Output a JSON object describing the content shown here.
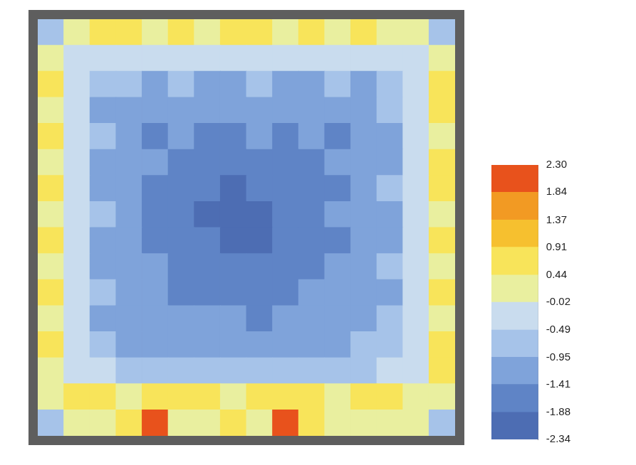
{
  "chart_data": {
    "type": "heatmap",
    "tick_labels": false,
    "cells": [
      [
        -0.5,
        0.3,
        0.5,
        0.6,
        0.4,
        0.5,
        0.3,
        0.5,
        0.6,
        0.4,
        0.5,
        0.3,
        0.6,
        0.4,
        0.2,
        -0.5
      ],
      [
        0.3,
        -0.1,
        -0.3,
        -0.2,
        -0.4,
        -0.3,
        -0.2,
        -0.4,
        -0.3,
        -0.2,
        -0.4,
        -0.3,
        -0.2,
        -0.3,
        -0.1,
        0.4
      ],
      [
        0.5,
        -0.3,
        -0.8,
        -0.9,
        -1.0,
        -0.9,
        -1.1,
        -1.0,
        -0.9,
        -1.0,
        -1.1,
        -0.9,
        -1.0,
        -0.8,
        -0.4,
        0.5
      ],
      [
        0.4,
        -0.4,
        -1.0,
        -1.2,
        -1.3,
        -1.2,
        -1.4,
        -1.3,
        -1.2,
        -1.4,
        -1.3,
        -1.2,
        -1.1,
        -0.9,
        -0.3,
        0.6
      ],
      [
        0.6,
        -0.3,
        -0.9,
        -1.3,
        -1.5,
        -1.4,
        -1.5,
        -1.6,
        -1.4,
        -1.5,
        -1.4,
        -1.5,
        -1.3,
        -1.0,
        -0.4,
        0.4
      ],
      [
        0.4,
        -0.2,
        -1.1,
        -1.2,
        -1.4,
        -1.6,
        -1.7,
        -1.6,
        -1.7,
        -1.6,
        -1.5,
        -1.4,
        -1.2,
        -1.1,
        -0.3,
        0.5
      ],
      [
        0.5,
        -0.4,
        -1.0,
        -1.4,
        -1.5,
        -1.7,
        -1.8,
        -1.9,
        -1.8,
        -1.7,
        -1.6,
        -1.5,
        -1.3,
        -0.9,
        -0.2,
        0.6
      ],
      [
        0.3,
        -0.3,
        -0.9,
        -1.3,
        -1.6,
        -1.7,
        -1.9,
        -2.0,
        -1.9,
        -1.8,
        -1.7,
        -1.4,
        -1.2,
        -1.0,
        -0.4,
        0.4
      ],
      [
        0.6,
        -0.2,
        -1.1,
        -1.2,
        -1.5,
        -1.6,
        -1.8,
        -1.9,
        -2.0,
        -1.8,
        -1.6,
        -1.5,
        -1.3,
        -1.1,
        -0.3,
        0.5
      ],
      [
        0.4,
        -0.4,
        -1.0,
        -1.3,
        -1.4,
        -1.6,
        -1.7,
        -1.8,
        -1.7,
        -1.7,
        -1.5,
        -1.4,
        -1.2,
        -0.9,
        -0.2,
        0.3
      ],
      [
        0.5,
        -0.3,
        -0.9,
        -1.2,
        -1.4,
        -1.5,
        -1.6,
        -1.5,
        -1.6,
        -1.5,
        -1.4,
        -1.3,
        -1.2,
        -1.0,
        -0.4,
        0.6
      ],
      [
        0.3,
        -0.2,
        -1.0,
        -1.1,
        -1.3,
        -1.4,
        -1.3,
        -1.4,
        -1.5,
        -1.3,
        -1.4,
        -1.2,
        -1.1,
        -0.8,
        -0.3,
        0.4
      ],
      [
        0.6,
        -0.4,
        -0.8,
        -1.0,
        -1.1,
        -1.2,
        -1.1,
        -1.2,
        -1.0,
        -1.1,
        -1.2,
        -1.0,
        -0.9,
        -0.8,
        -0.2,
        0.5
      ],
      [
        0.4,
        -0.1,
        -0.4,
        -0.5,
        -0.6,
        -0.5,
        -0.7,
        -0.6,
        -0.5,
        -0.6,
        -0.7,
        -0.5,
        -0.6,
        -0.4,
        -0.1,
        0.6
      ],
      [
        0.3,
        0.5,
        0.6,
        0.4,
        0.7,
        0.5,
        0.6,
        0.4,
        0.5,
        0.7,
        0.6,
        0.4,
        0.5,
        0.6,
        0.3,
        0.2
      ],
      [
        -0.6,
        0.2,
        0.4,
        0.5,
        2.1,
        0.4,
        0.3,
        0.5,
        0.4,
        2.0,
        0.5,
        0.3,
        0.4,
        0.2,
        0.3,
        -0.5
      ]
    ],
    "colorbar": {
      "range": [
        -2.34,
        2.3
      ],
      "ticks": [
        -2.34,
        -1.88,
        -1.41,
        -0.95,
        -0.49,
        -0.02,
        0.44,
        0.91,
        1.37,
        1.84,
        {
          "value": 2.3,
          "label": "2.30"
        }
      ],
      "colors": [
        "#4d6db3",
        "#5f84c6",
        "#7fa3da",
        "#a6c3e9",
        "#c9dcee",
        "#e9ef9f",
        "#f8e45a",
        "#f6c02f",
        "#f29a23",
        "#e8521c"
      ]
    }
  }
}
